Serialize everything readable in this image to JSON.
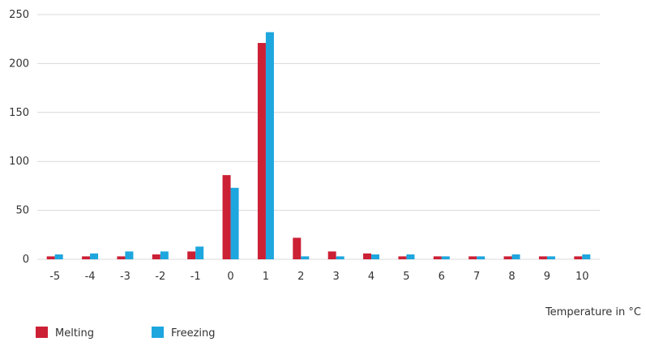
{
  "chart_data": {
    "type": "bar",
    "title": "",
    "xlabel": "Temperature in °C",
    "ylabel": "",
    "categories": [
      "-5",
      "-4",
      "-3",
      "-2",
      "-1",
      "0",
      "1",
      "2",
      "3",
      "4",
      "5",
      "6",
      "7",
      "8",
      "9",
      "10"
    ],
    "series": [
      {
        "name": "Melting",
        "color": "#cc2035",
        "values": [
          3,
          3,
          3,
          5,
          8,
          86,
          221,
          22,
          8,
          6,
          3,
          3,
          3,
          3,
          3,
          3
        ]
      },
      {
        "name": "Freezing",
        "color": "#1ea6de",
        "values": [
          5,
          6,
          8,
          8,
          13,
          73,
          232,
          3,
          3,
          5,
          5,
          3,
          3,
          5,
          3,
          5
        ]
      }
    ],
    "ylim": [
      0,
      250
    ],
    "yticks": [
      0,
      50,
      100,
      150,
      200,
      250
    ],
    "grid": true,
    "legend": "bottom-left"
  }
}
